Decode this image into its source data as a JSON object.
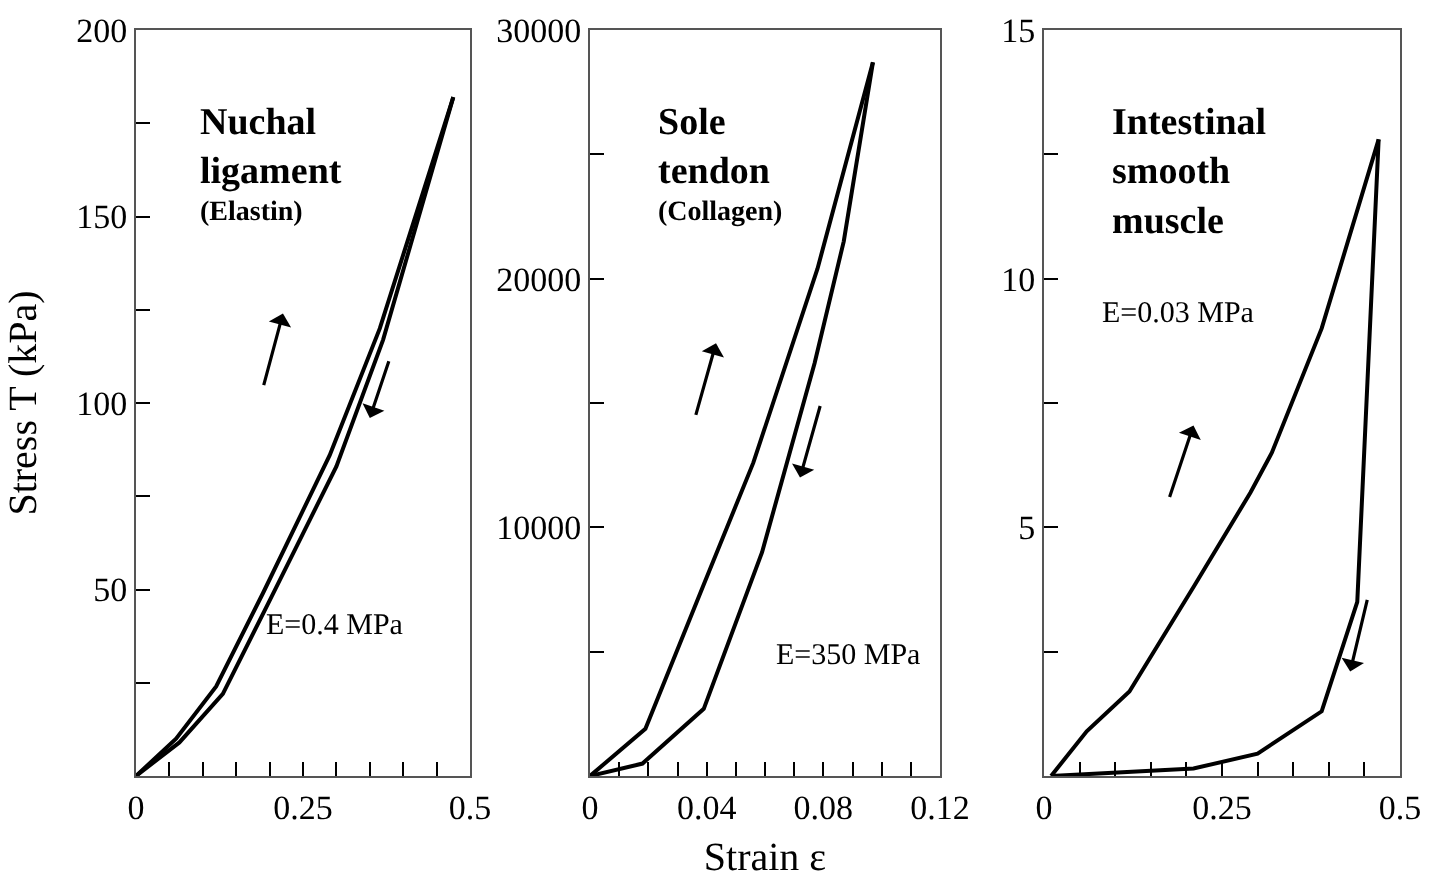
{
  "chart_data": [
    {
      "type": "line",
      "title": "Nuchal ligament",
      "subtitle": "(Elastin)",
      "ylabel": "Stress T (kPa)",
      "annotations": [
        "E=0.4 MPa"
      ],
      "series": [
        {
          "color": "#000000",
          "x": [
            0,
            0.06,
            0.12,
            0.19,
            0.29,
            0.365,
            0.475
          ],
          "values": [
            0,
            10,
            24,
            49,
            86,
            120,
            182
          ]
        },
        {
          "color": "#000000",
          "x": [
            0,
            0.065,
            0.13,
            0.2,
            0.3,
            0.37,
            0.475
          ],
          "values": [
            0,
            9,
            22,
            47,
            83,
            117,
            182
          ]
        }
      ],
      "xlim": [
        0,
        0.5
      ],
      "ylim": [
        0,
        200
      ],
      "xticks": [
        0,
        {
          "value": 0.05,
          "label": null
        },
        {
          "value": 0.1,
          "label": null
        },
        {
          "value": 0.15,
          "label": null
        },
        {
          "value": 0.2,
          "label": null
        },
        0.25,
        {
          "value": 0.3,
          "label": null
        },
        {
          "value": 0.35,
          "label": null
        },
        {
          "value": 0.4,
          "label": null
        },
        {
          "value": 0.45,
          "label": null
        },
        0.5
      ],
      "yticks": [
        {
          "value": 25,
          "label": null
        },
        50,
        {
          "value": 75,
          "label": null
        },
        100,
        {
          "value": 125,
          "label": null
        },
        150,
        {
          "value": 175,
          "label": null
        },
        200
      ],
      "grid": false,
      "marker": "none",
      "line_style": "solid"
    },
    {
      "type": "line",
      "title": "Sole tendon",
      "subtitle": "(Collagen)",
      "xlabel": "Strain ε",
      "annotations": [
        "E=350 MPa"
      ],
      "series": [
        {
          "color": "#000000",
          "x": [
            0,
            0.019,
            0.039,
            0.056,
            0.078,
            0.097
          ],
          "values": [
            0,
            1900,
            7700,
            12600,
            20400,
            28700
          ]
        },
        {
          "color": "#000000",
          "x": [
            0,
            0.018,
            0.039,
            0.059,
            0.077,
            0.087,
            0.097
          ],
          "values": [
            0,
            500,
            2700,
            9000,
            16600,
            21500,
            28700
          ]
        }
      ],
      "xlim": [
        0,
        0.12
      ],
      "ylim": [
        0,
        30000
      ],
      "xticks": [
        0,
        {
          "value": 0.01,
          "label": null
        },
        {
          "value": 0.02,
          "label": null
        },
        {
          "value": 0.03,
          "label": null
        },
        0.04,
        {
          "value": 0.05,
          "label": null
        },
        {
          "value": 0.06,
          "label": null
        },
        {
          "value": 0.07,
          "label": null
        },
        0.08,
        {
          "value": 0.09,
          "label": null
        },
        {
          "value": 0.1,
          "label": null
        },
        {
          "value": 0.11,
          "label": null
        },
        0.12
      ],
      "yticks": [
        {
          "value": 5000,
          "label": null
        },
        10000,
        {
          "value": 15000,
          "label": null
        },
        20000,
        {
          "value": 25000,
          "label": null
        },
        30000
      ],
      "grid": false,
      "marker": "none",
      "line_style": "solid"
    },
    {
      "type": "line",
      "title": "Intestinal smooth muscle",
      "annotations": [
        "E=0.03 MPa"
      ],
      "series": [
        {
          "color": "#000000",
          "x": [
            0.01,
            0.06,
            0.12,
            0.21,
            0.29,
            0.32,
            0.39,
            0.47
          ],
          "values": [
            0,
            0.9,
            1.7,
            3.8,
            5.7,
            6.5,
            9,
            12.8
          ]
        },
        {
          "color": "#000000",
          "x": [
            0.47,
            0.44,
            0.39,
            0.3,
            0.21,
            0.01
          ],
          "values": [
            12.8,
            3.5,
            1.3,
            0.45,
            0.15,
            0
          ]
        }
      ],
      "xlim": [
        0,
        0.5
      ],
      "ylim": [
        0,
        15
      ],
      "xticks": [
        0,
        {
          "value": 0.05,
          "label": null
        },
        {
          "value": 0.1,
          "label": null
        },
        {
          "value": 0.15,
          "label": null
        },
        {
          "value": 0.2,
          "label": null
        },
        0.25,
        {
          "value": 0.3,
          "label": null
        },
        {
          "value": 0.35,
          "label": null
        },
        {
          "value": 0.4,
          "label": null
        },
        {
          "value": 0.45,
          "label": null
        },
        0.5
      ],
      "yticks": [
        {
          "value": 2.5,
          "label": null
        },
        5,
        {
          "value": 7.5,
          "label": null
        },
        10,
        {
          "value": 12.5,
          "label": null
        },
        15
      ],
      "grid": false,
      "marker": "none",
      "line_style": "solid"
    }
  ]
}
